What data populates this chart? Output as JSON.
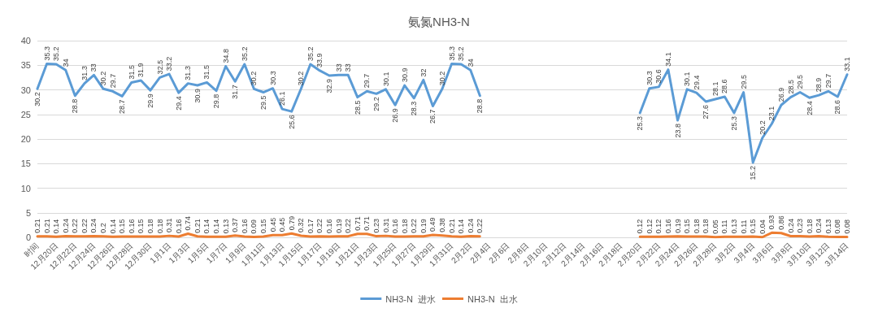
{
  "chart_data": {
    "type": "line",
    "title": "氨氮NH3-N",
    "categories": [
      "时间",
      null,
      "12月20日",
      null,
      "12月22日",
      null,
      "12月24日",
      null,
      "12月26日",
      null,
      "12月28日",
      null,
      "12月30日",
      null,
      "1月1日",
      null,
      "1月3日",
      null,
      "1月5日",
      null,
      "1月7日",
      null,
      "1月9日",
      null,
      "1月11日",
      null,
      "1月13日",
      null,
      "1月15日",
      null,
      "1月17日",
      null,
      "1月19日",
      null,
      "1月21日",
      null,
      "1月23日",
      null,
      "1月25日",
      null,
      "1月27日",
      null,
      "1月29日",
      null,
      "1月31日",
      null,
      "2月2日",
      null,
      "2月4日",
      null,
      "2月6日",
      null,
      "2月8日",
      null,
      "2月10日",
      null,
      "2月12日",
      null,
      "2月14日",
      null,
      "2月16日",
      null,
      "2月18日",
      null,
      "2月20日",
      null,
      "2月22日",
      null,
      "2月24日",
      null,
      "2月26日",
      null,
      "2月28日",
      null,
      "3月2日",
      null,
      "3月4日",
      null,
      "3月6日",
      null,
      "3月8日",
      null,
      "3月10日",
      null,
      "3月12日",
      null,
      "3月14日"
    ],
    "series": [
      {
        "name": "NH3-N  进水",
        "color": "#5b9bd5",
        "values": [
          30.2,
          35.3,
          35.2,
          34,
          28.8,
          31.3,
          33,
          30.2,
          29.7,
          28.7,
          31.5,
          31.9,
          29.9,
          32.5,
          33.2,
          29.4,
          31.3,
          30.9,
          31.5,
          29.8,
          34.8,
          31.7,
          35.2,
          30.2,
          29.5,
          30.3,
          26.1,
          25.6,
          30.2,
          35.2,
          33.9,
          32.9,
          33,
          33,
          28.5,
          29.7,
          29.2,
          30.1,
          26.9,
          30.9,
          28.3,
          32,
          26.7,
          30.2,
          35.3,
          35.2,
          34,
          28.8,
          null,
          null,
          null,
          null,
          null,
          null,
          null,
          null,
          null,
          null,
          null,
          null,
          null,
          null,
          null,
          null,
          25.3,
          30.3,
          30.6,
          34.1,
          23.8,
          30.1,
          29.4,
          27.6,
          28.1,
          28.6,
          25.3,
          29.5,
          15.2,
          20.2,
          23.1,
          26.9,
          28.5,
          29.5,
          28.4,
          28.9,
          29.7,
          28.6,
          33.1
        ]
      },
      {
        "name": "NH3-N  出水",
        "color": "#ed7d31",
        "values": [
          0.21,
          0.21,
          0.14,
          0.24,
          0.22,
          0.22,
          0.24,
          0.2,
          0.14,
          0.15,
          0.16,
          0.15,
          0.18,
          0.18,
          0.31,
          0.16,
          0.74,
          0.21,
          0.14,
          0.14,
          0.13,
          0.37,
          0.16,
          0.09,
          0.15,
          0.45,
          0.45,
          0.79,
          0.32,
          0.17,
          0.22,
          0.16,
          0.19,
          0.22,
          0.71,
          0.71,
          0.23,
          0.31,
          0.16,
          0.18,
          0.22,
          0.19,
          0.49,
          0.38,
          0.21,
          0.14,
          0.24,
          0.22,
          null,
          null,
          null,
          null,
          null,
          null,
          null,
          null,
          null,
          null,
          null,
          null,
          null,
          null,
          null,
          null,
          0.12,
          0.12,
          0.12,
          0.16,
          0.19,
          0.15,
          0.18,
          0.18,
          0.05,
          0.11,
          0.13,
          0.11,
          0.15,
          0.04,
          0.93,
          0.86,
          0.24,
          0.23,
          0.18,
          0.24,
          0.13,
          0.08,
          0.08
        ]
      }
    ],
    "ylim": [
      0,
      40
    ],
    "yticks": [
      0,
      5,
      10,
      15,
      20,
      25,
      30,
      35,
      40
    ],
    "grid": "y",
    "legend": "bottom",
    "data_labels": true
  }
}
